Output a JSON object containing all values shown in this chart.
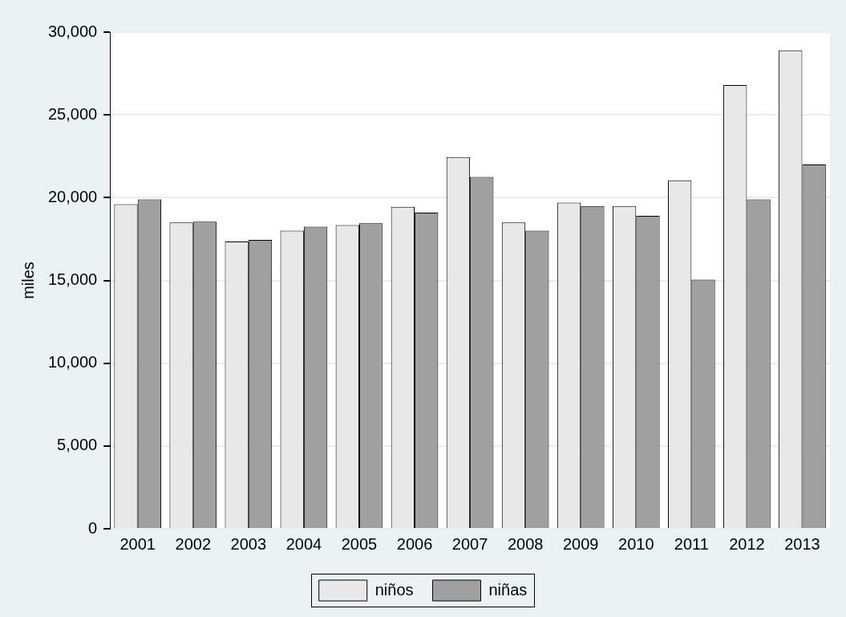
{
  "chart_data": {
    "type": "bar",
    "ylabel": "miles",
    "categories": [
      "2001",
      "2002",
      "2003",
      "2004",
      "2005",
      "2006",
      "2007",
      "2008",
      "2009",
      "2010",
      "2011",
      "2012",
      "2013"
    ],
    "series": [
      {
        "name": "niños",
        "color": "#e8e8e8",
        "values": [
          19600,
          18500,
          17350,
          18000,
          18350,
          19450,
          22450,
          18500,
          19700,
          19500,
          21050,
          26800,
          28900
        ]
      },
      {
        "name": "niñas",
        "color": "#a0a0a0",
        "values": [
          19900,
          18550,
          17450,
          18250,
          18450,
          19100,
          21250,
          18000,
          19500,
          18900,
          15050,
          19900,
          22000
        ]
      }
    ],
    "ylim": [
      0,
      30000
    ],
    "yticks": [
      {
        "value": 0,
        "label": "0"
      },
      {
        "value": 5000,
        "label": "5,000"
      },
      {
        "value": 10000,
        "label": "10,000"
      },
      {
        "value": 15000,
        "label": "15,000"
      },
      {
        "value": 20000,
        "label": "20,000"
      },
      {
        "value": 25000,
        "label": "25,000"
      },
      {
        "value": 30000,
        "label": "30,000"
      }
    ],
    "grid": "y",
    "legend": "bottom"
  }
}
